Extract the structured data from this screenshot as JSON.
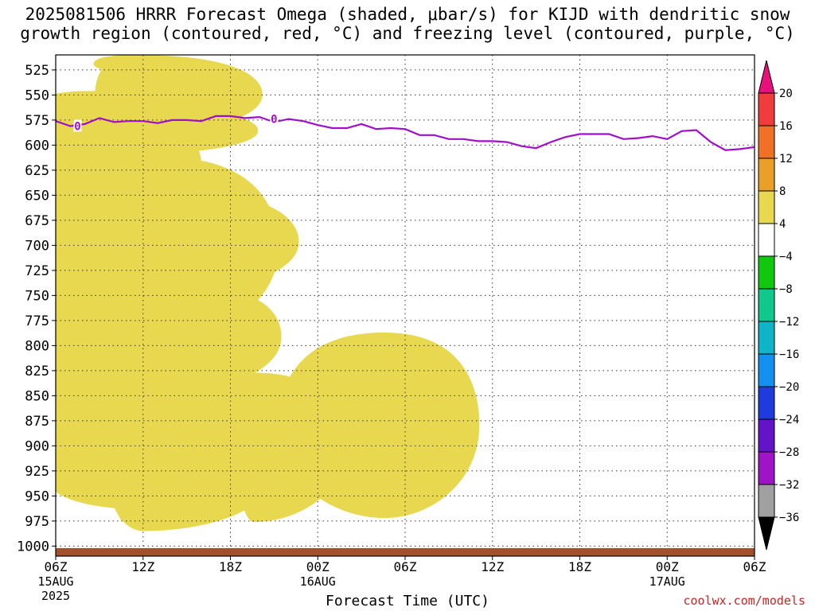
{
  "title_lines": [
    "2025081506 HRRR Forecast Omega (shaded, μbar/s) for KIJD with dendritic snow",
    "growth region (contoured, red, °C) and freezing level (contoured, purple, °C)"
  ],
  "credit": "coolwx.com/models",
  "chart_data": {
    "type": "heatmap",
    "title": "2025081506 HRRR Forecast Omega (shaded, μbar/s) for KIJD with dendritic snow growth region (contoured, red, °C) and freezing level (contoured, purple, °C)",
    "xlabel": "Forecast Time (UTC)",
    "ylabel": "",
    "x_range_hours": [
      0,
      48
    ],
    "y_range_hpa": [
      1010,
      510
    ],
    "y_scale": "inverted pressure",
    "grid": true,
    "y_ticks": [
      525,
      550,
      575,
      600,
      625,
      650,
      675,
      700,
      725,
      750,
      775,
      800,
      825,
      850,
      875,
      900,
      925,
      950,
      975,
      1000
    ],
    "x_ticks": [
      {
        "hour": 0,
        "label": "06Z",
        "sub": "15AUG",
        "sub2": "2025"
      },
      {
        "hour": 6,
        "label": "12Z",
        "sub": "",
        "sub2": ""
      },
      {
        "hour": 12,
        "label": "18Z",
        "sub": "",
        "sub2": ""
      },
      {
        "hour": 18,
        "label": "00Z",
        "sub": "16AUG",
        "sub2": ""
      },
      {
        "hour": 24,
        "label": "06Z",
        "sub": "",
        "sub2": ""
      },
      {
        "hour": 30,
        "label": "12Z",
        "sub": "",
        "sub2": ""
      },
      {
        "hour": 36,
        "label": "18Z",
        "sub": "",
        "sub2": ""
      },
      {
        "hour": 42,
        "label": "00Z",
        "sub": "17AUG",
        "sub2": ""
      },
      {
        "hour": 48,
        "label": "06Z",
        "sub": "",
        "sub2": ""
      }
    ],
    "colorbar": {
      "labels": [
        "20",
        "16",
        "12",
        "8",
        "4",
        "−4",
        "−8",
        "−12",
        "−16",
        "−20",
        "−24",
        "−28",
        "−32",
        "−36"
      ],
      "bins": [
        {
          "from": 20,
          "to": 24,
          "color": "#e8107a"
        },
        {
          "from": 16,
          "to": 20,
          "color": "#f03c3c"
        },
        {
          "from": 12,
          "to": 16,
          "color": "#f07028"
        },
        {
          "from": 8,
          "to": 12,
          "color": "#e8a028"
        },
        {
          "from": 4,
          "to": 8,
          "color": "#e8d850"
        },
        {
          "from": -4,
          "to": 4,
          "color": "#ffffff"
        },
        {
          "from": -8,
          "to": -4,
          "color": "#10c810"
        },
        {
          "from": -12,
          "to": -8,
          "color": "#10c88c"
        },
        {
          "from": -16,
          "to": -12,
          "color": "#10b4c8"
        },
        {
          "from": -20,
          "to": -16,
          "color": "#1490f0"
        },
        {
          "from": -24,
          "to": -20,
          "color": "#1e3cdc"
        },
        {
          "from": -28,
          "to": -24,
          "color": "#6414c8"
        },
        {
          "from": -32,
          "to": -28,
          "color": "#a014c8"
        },
        {
          "from": -36,
          "to": -32,
          "color": "#a0a0a0"
        },
        {
          "from": -40,
          "to": -36,
          "color": "#000000"
        }
      ]
    },
    "ground_color": "#a0522d",
    "freezing_level": {
      "label": "0",
      "color": "#a010c8",
      "points": [
        [
          0,
          576
        ],
        [
          1,
          581
        ],
        [
          2,
          579
        ],
        [
          3,
          573
        ],
        [
          4,
          577
        ],
        [
          5,
          576
        ],
        [
          6,
          576
        ],
        [
          7,
          578
        ],
        [
          8,
          575
        ],
        [
          9,
          575
        ],
        [
          10,
          576
        ],
        [
          11,
          571
        ],
        [
          12,
          571
        ],
        [
          13,
          573
        ],
        [
          14,
          572
        ],
        [
          15,
          577
        ],
        [
          16,
          574
        ],
        [
          17,
          576
        ],
        [
          18,
          580
        ],
        [
          19,
          583
        ],
        [
          20,
          583
        ],
        [
          21,
          579
        ],
        [
          22,
          584
        ],
        [
          23,
          583
        ],
        [
          24,
          584
        ],
        [
          25,
          590
        ],
        [
          26,
          590
        ],
        [
          27,
          594
        ],
        [
          28,
          594
        ],
        [
          29,
          596
        ],
        [
          30,
          596
        ],
        [
          31,
          597
        ],
        [
          32,
          601
        ],
        [
          33,
          603
        ],
        [
          34,
          597
        ],
        [
          35,
          592
        ],
        [
          36,
          589
        ],
        [
          37,
          589
        ],
        [
          38,
          589
        ],
        [
          39,
          594
        ],
        [
          40,
          593
        ],
        [
          41,
          591
        ],
        [
          42,
          594
        ],
        [
          43,
          586
        ],
        [
          44,
          585
        ],
        [
          45,
          597
        ],
        [
          46,
          605
        ],
        [
          47,
          604
        ],
        [
          48,
          602
        ]
      ],
      "label_positions": [
        [
          1.5,
          581
        ],
        [
          15,
          574
        ]
      ]
    },
    "omega_blobs": [
      {
        "name": "rising-1",
        "levels": [
          [
            "#e8d850",
            6.0,
            2.3,
            8.5,
            888,
            985
          ]
        ]
      },
      {
        "name": "rising-2",
        "levels": [
          [
            "#e8d850",
            13.6,
            1.2,
            6.3,
            827,
            976
          ]
        ]
      },
      {
        "name": "rising-3",
        "levels": [
          [
            "#e8d850",
            2.5,
            4.8,
            7.7,
            718,
            782
          ]
        ]
      },
      {
        "name": "rising-4",
        "levels": [
          [
            "#e8d850",
            3.4,
            6.7,
            3.7,
            844,
            953
          ]
        ]
      },
      {
        "name": "rising-5",
        "levels": [
          [
            "#e8d850",
            7.0,
            2.6,
            6.0,
            634,
            722
          ]
        ]
      },
      {
        "name": "rising-6",
        "levels": [
          [
            "#e8d850",
            4.6,
            0.8,
            10.5,
            793,
            975
          ]
        ]
      },
      {
        "name": "rising-7",
        "levels": [
          [
            "#e8d850",
            5.5,
            5.9,
            5.2,
            908,
            963
          ]
        ]
      },
      {
        "name": "rising-8",
        "levels": [
          [
            "#e8d850",
            9.5,
            2.9,
            6.0,
            742,
            841
          ]
        ]
      },
      {
        "name": "rising-9",
        "levels": [
          [
            "#e8d850",
            22.6,
            7.3,
            6.5,
            787,
            972
          ]
        ]
      },
      {
        "name": "rising-10",
        "levels": [
          [
            "#e8d850",
            7.4,
            3.8,
            9.3,
            645,
            749
          ]
        ]
      },
      {
        "name": "rising-11",
        "levels": [
          [
            "#e8d850",
            5.6,
            3.8,
            8.3,
            563,
            609
          ]
        ]
      },
      {
        "name": "rising-12",
        "levels": [
          [
            "#e8d850",
            4.6,
            0.5,
            4.5,
            510,
            530
          ]
        ]
      },
      {
        "name": "rising-13",
        "levels": [
          [
            "#e8d850",
            5.4,
            2.8,
            2.6,
            510,
            528
          ]
        ]
      },
      {
        "name": "rising-14",
        "levels": [
          [
            "#e8d850",
            7.3,
            4.8,
            8.0,
            612,
            794
          ]
        ]
      },
      {
        "name": "rising-15",
        "levels": [
          [
            "#e8d850",
            5.4,
            2.7,
            8.8,
            510,
            590
          ]
        ]
      },
      {
        "name": "rising-16",
        "levels": [
          [
            "#e8d850",
            2.8,
            10.3,
            3.3,
            629,
            725
          ]
        ]
      },
      {
        "name": "rising-17",
        "levels": [
          [
            "#e8d850",
            2.5,
            12.1,
            5.1,
            650,
            727
          ]
        ]
      },
      {
        "name": "rising-18",
        "levels": [
          [
            "#e8d850",
            3.0,
            6.2,
            4.3,
            739,
            812
          ]
        ]
      },
      {
        "name": "rising-19",
        "levels": [
          [
            "#e8d850",
            2.2,
            4.9,
            3.2,
            795,
            853
          ]
        ]
      },
      {
        "name": "rising-20",
        "levels": [
          [
            "#e8d850",
            4.9,
            6.2,
            5.8,
            758,
            883
          ]
        ]
      },
      {
        "name": "rising-21",
        "levels": [
          [
            "#e8d850",
            3.8,
            6.5,
            6.6,
            795,
            877
          ]
        ]
      },
      {
        "name": "rising-22",
        "levels": [
          [
            "#e8d850",
            1.0,
            2.8,
            4.8,
            703,
            738
          ]
        ]
      },
      {
        "name": "rising-23",
        "levels": [
          [
            "#e8d850",
            2.7,
            5.1,
            8.9,
            711,
            851
          ]
        ]
      },
      {
        "name": "rising-24",
        "levels": [
          [
            "#e8d850",
            3.4,
            9.9,
            8.9,
            695,
            831
          ]
        ]
      },
      {
        "name": "rising-25",
        "levels": [
          [
            "#e8d850",
            4.6,
            5.3,
            5.1,
            825,
            955
          ]
        ]
      },
      {
        "name": "rising-26",
        "levels": [
          [
            "#e8d850",
            2.8,
            8.0,
            3.9,
            863,
            911
          ]
        ]
      },
      {
        "name": "rising-27",
        "levels": [
          [
            "#e8d850",
            3.6,
            0.7,
            4.7,
            757,
            864
          ]
        ]
      },
      {
        "name": "rising-28",
        "levels": [
          [
            "#e8d850",
            5.1,
            6.6,
            4.3,
            851,
            936
          ]
        ]
      },
      {
        "name": "rising-29",
        "levels": [
          [
            "#e8d850",
            4.6,
            4.3,
            5.3,
            806,
            950
          ]
        ]
      },
      {
        "name": "rising-30",
        "levels": [
          [
            "#e8d850",
            3.9,
            4.4,
            5.6,
            770,
            867
          ]
        ]
      },
      {
        "name": "rising-31",
        "levels": [
          [
            "#e8d850",
            2.6,
            3.2,
            5.2,
            720,
            786
          ]
        ]
      },
      {
        "name": "rising-32",
        "levels": [
          [
            "#e8d850",
            2.9,
            2.8,
            3.1,
            655,
            721
          ]
        ]
      },
      {
        "name": "rising-33",
        "levels": [
          [
            "#e8d850",
            3.8,
            4.8,
            8.2,
            645,
            721
          ]
        ]
      },
      {
        "name": "rising-34",
        "levels": [
          [
            "#e8d850",
            2.3,
            3.4,
            4.5,
            635,
            714
          ]
        ]
      },
      {
        "name": "rising-35",
        "levels": [
          [
            "#e8d850",
            3.5,
            3.2,
            2.9,
            623,
            654
          ]
        ]
      },
      {
        "name": "rising-36",
        "levels": [
          [
            "#e8d850",
            3.1,
            4.1,
            4.6,
            613,
            738
          ]
        ]
      },
      {
        "name": "rising-37",
        "levels": [
          [
            "#e8d850",
            4.5,
            3.3,
            5.5,
            573,
            666
          ]
        ]
      },
      {
        "name": "rising-38",
        "levels": [
          [
            "#e8d850",
            2.7,
            2.7,
            3.1,
            659,
            705
          ]
        ]
      },
      {
        "name": "rising-39",
        "levels": [
          [
            "#e8d850",
            3.9,
            4.0,
            3.5,
            594,
            728
          ]
        ]
      },
      {
        "name": "rising-40",
        "levels": [
          [
            "#e8d850",
            2.6,
            4.4,
            3.5,
            565,
            612
          ]
        ]
      },
      {
        "name": "rising-41",
        "levels": [
          [
            "#e8d850",
            2.2,
            5.0,
            3.6,
            556,
            640
          ]
        ]
      },
      {
        "name": "rising-42",
        "levels": [
          [
            "#e8d850",
            2.2,
            4.2,
            4.1,
            546,
            599
          ]
        ]
      },
      {
        "name": "rising-43",
        "levels": [
          [
            "#e8d850",
            2.6,
            2.7,
            2.6,
            609,
            661
          ]
        ]
      },
      {
        "name": "rising-44",
        "levels": [
          [
            "#e8d850",
            1.9,
            3.2,
            4.5,
            675,
            773
          ]
        ]
      },
      {
        "name": "rising-45",
        "levels": [
          [
            "#e8d850",
            1.9,
            1.8,
            2.6,
            649,
            682
          ]
        ]
      },
      {
        "name": "rising-46",
        "levels": [
          [
            "#e8d850",
            3.3,
            6.5,
            7.5,
            773,
            871
          ]
        ]
      },
      {
        "name": "rising-47",
        "levels": [
          [
            "#e8d850",
            2.6,
            6.7,
            3.7,
            769,
            862
          ]
        ]
      },
      {
        "name": "rising-48",
        "levels": [
          [
            "#e8d850",
            3.2,
            3.9,
            4.6,
            804,
            880
          ]
        ]
      },
      {
        "name": "rising-49",
        "levels": [
          [
            "#e8d850",
            1.9,
            4.0,
            8.2,
            789,
            828
          ]
        ]
      },
      {
        "name": "rising-50",
        "levels": [
          [
            "#e8d850",
            2.3,
            5.8,
            4.8,
            806,
            849
          ]
        ]
      }
    ]
  }
}
